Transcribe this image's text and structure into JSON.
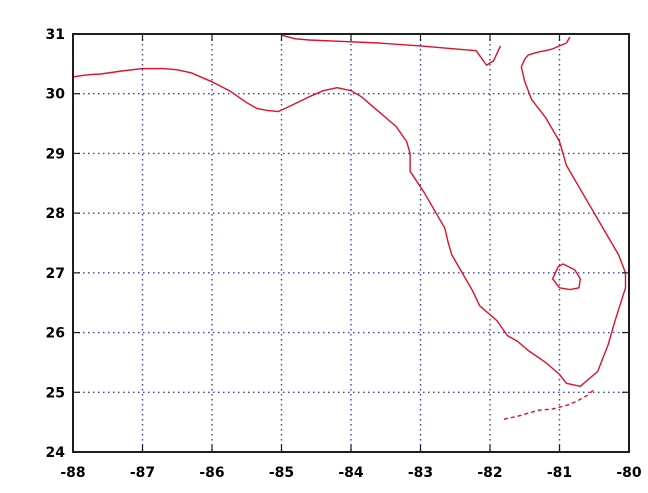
{
  "chart_data": {
    "type": "line",
    "title": "",
    "xlabel": "",
    "ylabel": "",
    "xlim": [
      -88,
      -80
    ],
    "ylim": [
      24,
      31
    ],
    "x_ticks": [
      -88,
      -87,
      -86,
      -85,
      -84,
      -83,
      -82,
      -81,
      -80
    ],
    "y_ticks": [
      24,
      25,
      26,
      27,
      28,
      29,
      30,
      31
    ],
    "x_tick_labels": [
      "-88",
      "-87",
      "-86",
      "-85",
      "-84",
      "-83",
      "-82",
      "-81",
      "-80"
    ],
    "y_tick_labels": [
      "24",
      "25",
      "26",
      "27",
      "28",
      "29",
      "30",
      "31"
    ],
    "grid": true,
    "colors": {
      "grid": "#3b3bbf",
      "frame": "#1e1e1e",
      "coastline": "#e0102a",
      "coastline_alt": "#f39c12",
      "water_edge": "#3aa8c8"
    },
    "series": [
      {
        "id": "florida-mainland",
        "x": [
          -88.0,
          -87.9,
          -87.75,
          -87.6,
          -87.3,
          -87.0,
          -86.7,
          -86.5,
          -86.3,
          -86.0,
          -85.75,
          -85.5,
          -85.35,
          -85.2,
          -85.05,
          -84.9,
          -84.6,
          -84.4,
          -84.2,
          -84.0,
          -83.85,
          -83.7,
          -83.55,
          -83.35,
          -83.2,
          -83.15,
          -83.15,
          -82.95,
          -82.8,
          -82.65,
          -82.6,
          -82.55,
          -82.4,
          -82.25,
          -82.15,
          -81.9,
          -81.75,
          -81.6,
          -81.45,
          -81.2,
          -81.0,
          -80.9,
          -80.7,
          -80.45,
          -80.3,
          -80.2,
          -80.05,
          -80.05,
          -80.15,
          -80.35,
          -80.6,
          -80.9,
          -81.0,
          -81.2,
          -81.4,
          -81.5,
          -81.55,
          -81.5,
          -81.45,
          -81.3,
          -81.2,
          -81.1,
          -81.0,
          -80.9,
          -80.85
        ],
        "y": [
          30.28,
          30.3,
          30.32,
          30.33,
          30.38,
          30.42,
          30.42,
          30.4,
          30.35,
          30.2,
          30.05,
          29.85,
          29.75,
          29.72,
          29.7,
          29.78,
          29.95,
          30.05,
          30.1,
          30.05,
          29.95,
          29.8,
          29.65,
          29.45,
          29.2,
          29.0,
          28.7,
          28.35,
          28.05,
          27.75,
          27.5,
          27.3,
          27.0,
          26.7,
          26.45,
          26.2,
          25.95,
          25.85,
          25.7,
          25.5,
          25.3,
          25.15,
          25.1,
          25.35,
          25.8,
          26.2,
          26.75,
          27.0,
          27.3,
          27.7,
          28.2,
          28.8,
          29.2,
          29.6,
          29.9,
          30.2,
          30.45,
          30.58,
          30.65,
          30.7,
          30.72,
          30.75,
          30.8,
          30.85,
          30.95
        ]
      },
      {
        "id": "florida-north-border",
        "x": [
          -85.0,
          -84.8,
          -84.6,
          -84.2,
          -83.6,
          -83.0,
          -82.5,
          -82.2,
          -82.05,
          -81.95,
          -81.85
        ],
        "y": [
          30.98,
          30.92,
          30.9,
          30.88,
          30.85,
          30.8,
          30.75,
          30.72,
          30.48,
          30.55,
          30.8
        ]
      },
      {
        "id": "lake-okeechobee",
        "x": [
          -80.95,
          -80.78,
          -80.7,
          -80.72,
          -80.85,
          -81.0,
          -81.1,
          -81.02,
          -80.95
        ],
        "y": [
          27.15,
          27.05,
          26.9,
          26.75,
          26.72,
          26.75,
          26.9,
          27.1,
          27.15
        ]
      },
      {
        "id": "florida-keys",
        "x": [
          -81.8,
          -81.6,
          -81.45,
          -81.3,
          -81.1,
          -80.9,
          -80.75,
          -80.6,
          -80.5
        ],
        "y": [
          24.55,
          24.6,
          24.65,
          24.7,
          24.72,
          24.78,
          24.85,
          24.95,
          25.05
        ]
      }
    ]
  }
}
